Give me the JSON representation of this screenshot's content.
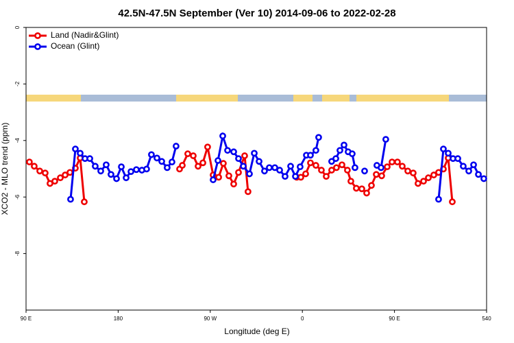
{
  "chart_data": {
    "type": "line",
    "title": "42.5N-47.5N September (Ver 10)   2014-09-06 to 2022-02-28",
    "x_label": "Longitude (deg E)",
    "y_label": "XCO2 - MLO trend (ppm)",
    "xlim": [
      90,
      540
    ],
    "xticks": [
      {
        "value": 90,
        "label": "90 E"
      },
      180,
      {
        "value": 270,
        "label": "90 W"
      },
      {
        "value": 360,
        "label": "0"
      },
      {
        "value": 450,
        "label": "90 E"
      },
      540
    ],
    "ylim": [
      -10,
      0
    ],
    "yticks": [
      0,
      -2,
      -4,
      -6,
      -8
    ],
    "legend": "top-left",
    "series": [
      {
        "name": "Land (Nadir&Glint)",
        "color": "#ee0000",
        "x": [
          93.3,
          98.0,
          103.4,
          108.7,
          113.4,
          118.1,
          123.5,
          128.2,
          132.9,
          138.2,
          142.9,
          146.9,
          null,
          240.0,
          242.7,
          248.0,
          253.4,
          258.1,
          262.8,
          267.4,
          272.8,
          278.2,
          282.8,
          288.2,
          292.9,
          297.6,
          303.6,
          306.9,
          null,
          354.5,
          358.5,
          363.2,
          367.9,
          373.2,
          378.6,
          383.3,
          388.6,
          393.3,
          398.7,
          404.0,
          407.4,
          412.7,
          418.1,
          422.8,
          427.5,
          432.2,
          437.5,
          442.9,
          447.6,
          452.9,
          457.6,
          463.0,
          468.3,
          473.0,
          478.4,
          483.1,
          488.4,
          493.1,
          497.8,
          502.5,
          506.5
        ],
        "values": [
          -4.76,
          -4.91,
          -5.08,
          -5.15,
          -5.52,
          -5.44,
          -5.32,
          -5.22,
          -5.13,
          -4.98,
          -4.62,
          -6.17,
          null,
          -5.01,
          -4.88,
          -4.47,
          -4.54,
          -4.91,
          -4.79,
          -4.23,
          -5.22,
          -5.3,
          -4.81,
          -5.25,
          -5.54,
          -5.13,
          -4.54,
          -5.81,
          null,
          -5.3,
          -5.3,
          -5.18,
          -4.79,
          -4.88,
          -5.05,
          -5.27,
          -5.05,
          -4.96,
          -4.86,
          -5.05,
          -5.44,
          -5.69,
          -5.71,
          -5.86,
          -5.59,
          -5.2,
          -5.25,
          -4.93,
          -4.76,
          -4.76,
          -4.91,
          -5.08,
          -5.15,
          -5.52,
          -5.44,
          -5.32,
          -5.22,
          -5.13,
          -5.01,
          -4.62,
          -6.17
        ]
      },
      {
        "name": "Ocean (Glint)",
        "color": "#0000ee",
        "x": [
          133.5,
          138.2,
          142.9,
          147.6,
          152.3,
          157.6,
          163.0,
          168.3,
          173.0,
          178.4,
          183.1,
          187.8,
          192.5,
          197.8,
          203.2,
          207.8,
          212.5,
          217.9,
          222.6,
          227.9,
          232.6,
          236.6,
          null,
          272.8,
          277.5,
          282.2,
          286.9,
          292.9,
          297.6,
          302.3,
          308.3,
          313.0,
          317.7,
          323.0,
          327.7,
          333.1,
          337.8,
          343.1,
          348.5,
          353.2,
          357.8,
          363.9,
          367.9,
          373.2,
          375.9,
          null,
          388.6,
          392.7,
          396.7,
          400.7,
          404.7,
          408.7,
          411.4,
          null,
          420.8,
          null,
          432.8,
          436.9,
          441.5,
          null,
          493.1,
          497.8,
          502.5,
          507.2,
          511.9,
          517.2,
          522.6,
          527.3,
          532.0,
          537.3
        ],
        "values": [
          -6.08,
          -4.3,
          -4.45,
          -4.64,
          -4.64,
          -4.91,
          -5.08,
          -4.86,
          -5.2,
          -5.35,
          -4.93,
          -5.32,
          -5.1,
          -5.03,
          -5.05,
          -5.01,
          -4.5,
          -4.62,
          -4.74,
          -4.96,
          -4.76,
          -4.2,
          null,
          -5.39,
          -4.71,
          -3.84,
          -4.35,
          -4.4,
          -4.64,
          -4.91,
          -5.18,
          -4.45,
          -4.74,
          -5.08,
          -4.96,
          -4.96,
          -5.05,
          -5.27,
          -4.91,
          -5.27,
          -4.93,
          -4.52,
          -4.52,
          -4.35,
          -3.89,
          null,
          -4.74,
          -4.64,
          -4.35,
          -4.16,
          -4.4,
          -4.47,
          -4.96,
          null,
          -5.08,
          null,
          -4.88,
          -4.96,
          -3.96,
          null,
          -6.08,
          -4.3,
          -4.45,
          -4.64,
          -4.64,
          -4.91,
          -5.08,
          -4.86,
          -5.2,
          -5.35
        ]
      }
    ]
  }
}
